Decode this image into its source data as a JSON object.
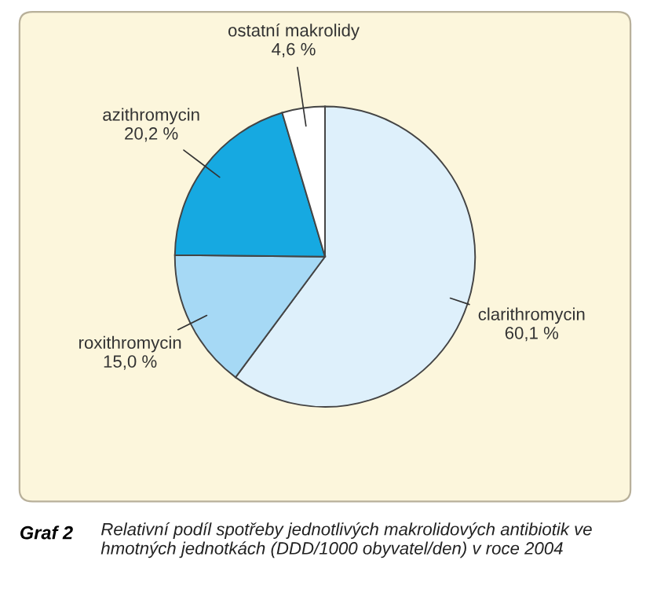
{
  "chart_data": {
    "type": "pie",
    "title": "Graf 2",
    "subtitle": "Relativní podíl spotřeby jednotlivých makrolidových antibiotik ve hmotných jednotkách (DDD/1000 obyvatel/den) v roce 2004",
    "categories": [
      "clarithromycin",
      "roxithromycin",
      "azithromycin",
      "ostatní makrolidy"
    ],
    "values": [
      60.1,
      15.0,
      20.2,
      4.6
    ],
    "value_labels": [
      "60,1 %",
      "15,0 %",
      "20,2 %",
      "4,6 %"
    ],
    "colors": [
      "#def0fb",
      "#a6d9f5",
      "#16a9e1",
      "#ffffff"
    ]
  }
}
